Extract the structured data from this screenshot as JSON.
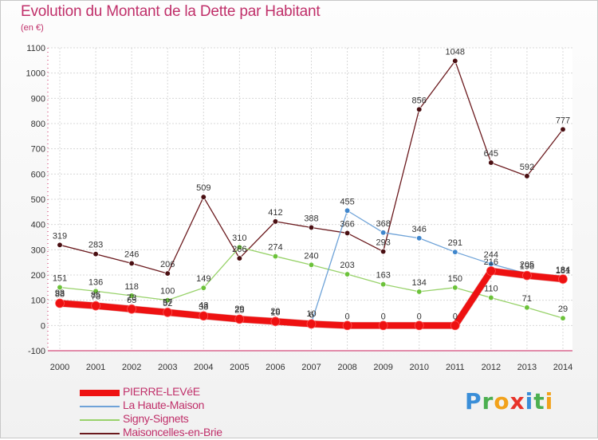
{
  "header": {
    "title": "Evolution du Montant de la Dette par Habitant",
    "subtitle": "(en €)"
  },
  "branding": {
    "logo_text": "Proxiti",
    "logo_colors": [
      "#3a8ed8",
      "#4caf50",
      "#f2a21b",
      "#e8332a",
      "#3a8ed8",
      "#4caf50",
      "#f2a21b"
    ]
  },
  "chart_data": {
    "type": "line",
    "x": [
      "2000",
      "2001",
      "2002",
      "2003",
      "2004",
      "2005",
      "2006",
      "2007",
      "2008",
      "2009",
      "2010",
      "2011",
      "2012",
      "2013",
      "2014"
    ],
    "ylim": [
      -100,
      1100
    ],
    "yticks": [
      -100,
      0,
      100,
      200,
      300,
      400,
      500,
      600,
      700,
      800,
      900,
      1000,
      1100
    ],
    "grid": true,
    "legend_position": "bottom-left",
    "series": [
      {
        "name": "Maisoncelles-en-Brie",
        "color": "#6b1a1e",
        "marker": "#4a0f12",
        "width": 1.3,
        "values": [
          319,
          283,
          246,
          206,
          509,
          266,
          412,
          388,
          366,
          293,
          856,
          1048,
          645,
          592,
          777
        ]
      },
      {
        "name": "Signy-Signets",
        "color": "#98d26a",
        "marker": "#6cc23a",
        "width": 1.3,
        "values": [
          151,
          136,
          118,
          100,
          149,
          310,
          274,
          240,
          203,
          163,
          134,
          150,
          110,
          71,
          29
        ]
      },
      {
        "name": "La Haute-Maison",
        "color": "#6fa3d8",
        "marker": "#3f86cc",
        "width": 1.3,
        "values": [
          93,
          85,
          73,
          57,
          43,
          29,
          20,
          10,
          455,
          368,
          346,
          291,
          244,
          205,
          181
        ]
      },
      {
        "name": "PIERRE-LEVéE",
        "color": "#ee1111",
        "marker": "#ee1111",
        "width": 8,
        "values": [
          88,
          78,
          65,
          52,
          38,
          25,
          16,
          6,
          0,
          0,
          0,
          0,
          216,
          198,
          184
        ]
      }
    ]
  },
  "legend": [
    {
      "name": "PIERRE-LEVéE",
      "color": "#ee1111",
      "thickness": 8
    },
    {
      "name": "La Haute-Maison",
      "color": "#6fa3d8",
      "thickness": 2
    },
    {
      "name": "Signy-Signets",
      "color": "#98d26a",
      "thickness": 2
    },
    {
      "name": "Maisoncelles-en-Brie",
      "color": "#6b1a1e",
      "thickness": 2
    }
  ]
}
